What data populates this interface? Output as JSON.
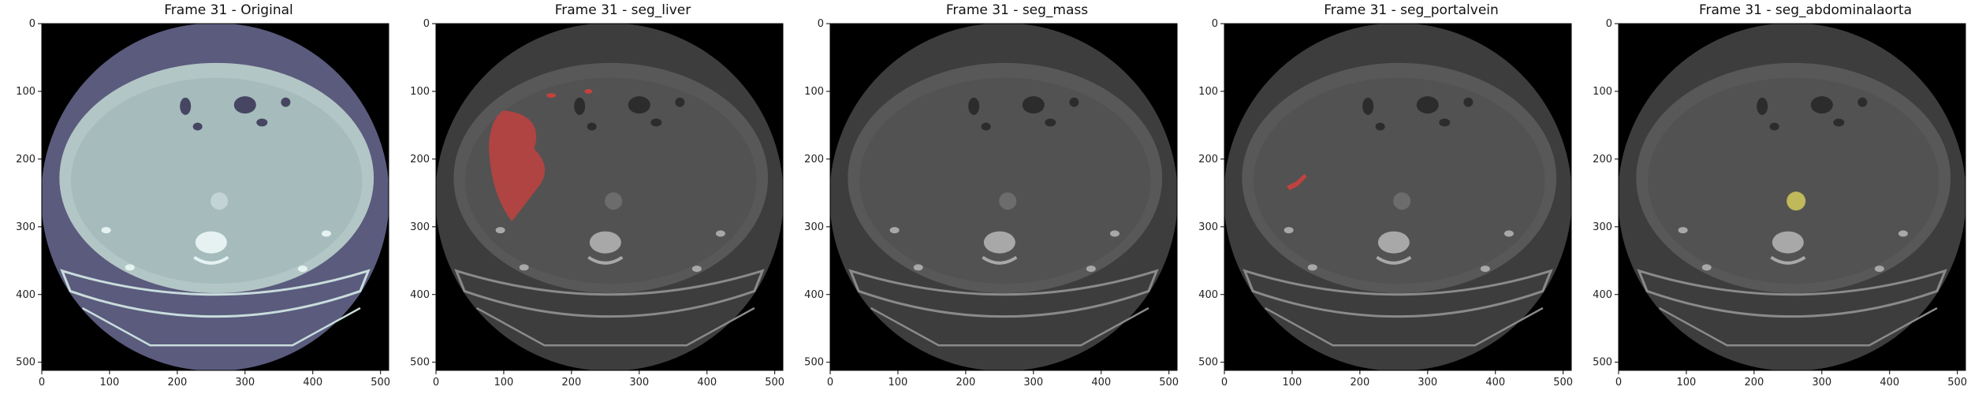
{
  "figure": {
    "panels": [
      {
        "title": "Frame 31 - Original",
        "overlay": null,
        "colormap": "bone"
      },
      {
        "title": "Frame 31 - seg_liver",
        "overlay": "liver",
        "colormap": "gray"
      },
      {
        "title": "Frame 31 - seg_mass",
        "overlay": null,
        "colormap": "gray"
      },
      {
        "title": "Frame 31 - seg_portalvein",
        "overlay": "portalvein",
        "colormap": "gray"
      },
      {
        "title": "Frame 31 - seg_abdominalaorta",
        "overlay": "aorta",
        "colormap": "gray"
      }
    ],
    "x_ticks": [
      "0",
      "100",
      "200",
      "300",
      "400",
      "500"
    ],
    "y_ticks": [
      "0",
      "100",
      "200",
      "300",
      "400",
      "500"
    ],
    "overlay_colors": {
      "liver": "#c0423f",
      "portalvein": "#c0423f",
      "aorta": "#c9c25a"
    }
  }
}
